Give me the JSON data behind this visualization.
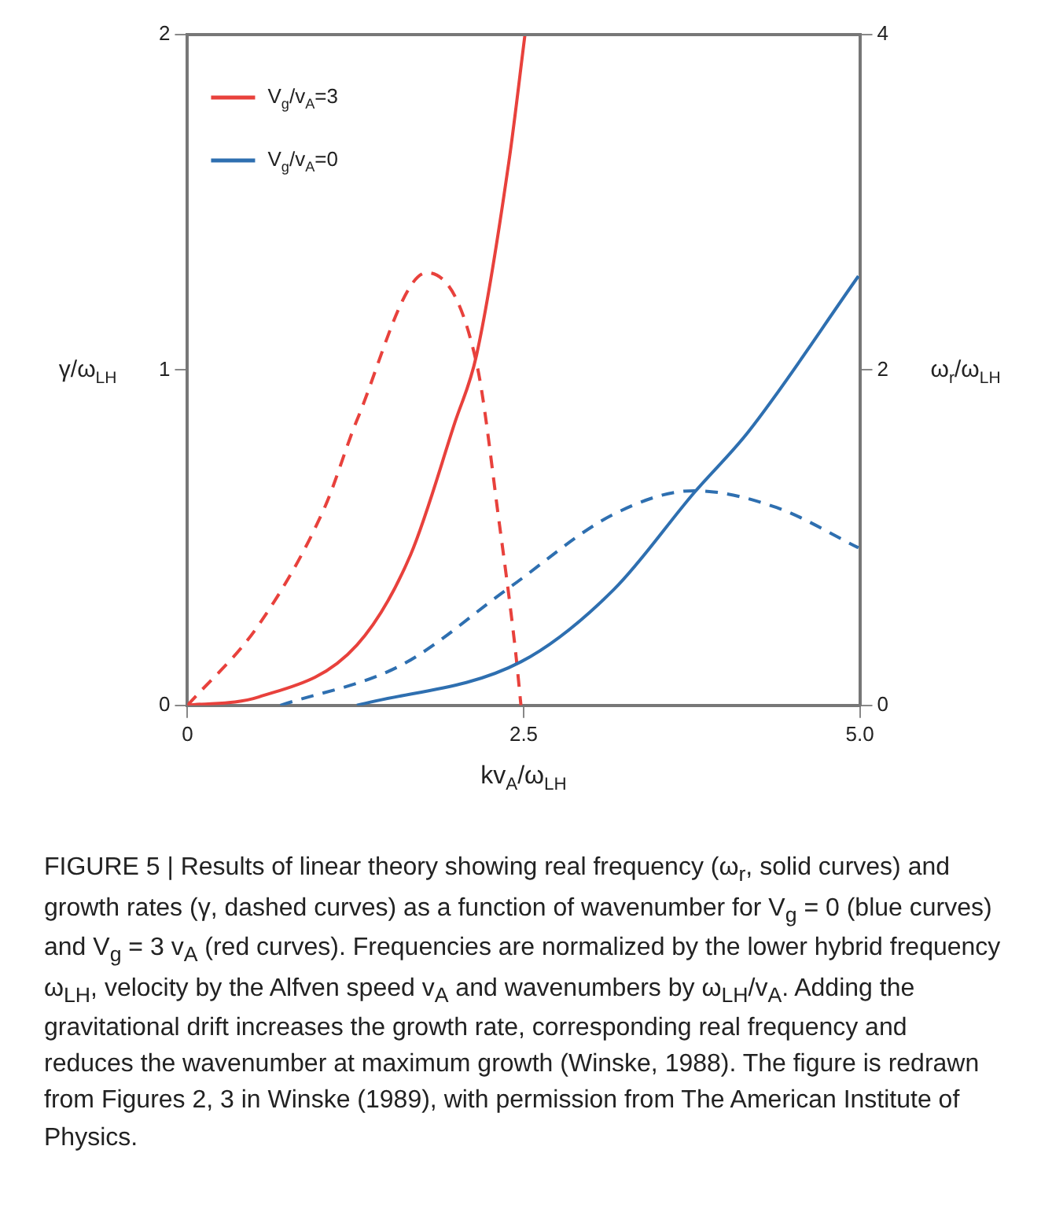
{
  "chart_data": {
    "type": "line",
    "xlabel": "kv$_{A}$/ω$_{LH}$",
    "ylabel": "γ/ω$_{LH}$",
    "y2label": "ω$_{r}$/ω$_{LH}$",
    "xlim": [
      0,
      5
    ],
    "xticks": [
      0,
      2.5,
      {
        "value": 5,
        "label": "5.0"
      }
    ],
    "ylim": [
      0,
      2
    ],
    "yticks": [
      0,
      1,
      2
    ],
    "y2lim": [
      0,
      4
    ],
    "y2ticks": [
      0,
      2,
      4
    ],
    "grid": false,
    "legend": "top left",
    "marker": "none",
    "series": [
      {
        "name": "V$_{g}$/v$_{A}$=3",
        "color": "#e8413c",
        "axis": "y2",
        "line_style": "solid",
        "x": [
          0,
          0.53,
          1.26,
          1.66,
          1.99,
          2.15,
          2.39,
          2.51
        ],
        "values": [
          0,
          0.05,
          0.36,
          0.9,
          1.69,
          2.09,
          3.24,
          4.0
        ]
      },
      {
        "name": "V$_{g}$/v$_{A}$=0",
        "color": "#2e6fb0",
        "axis": "y2",
        "line_style": "solid",
        "x": [
          1.26,
          2.48,
          3.17,
          3.77,
          4.17,
          4.99
        ],
        "values": [
          0,
          0.26,
          0.69,
          1.27,
          1.63,
          2.56
        ]
      },
      {
        "color": "#e8413c",
        "axis": "y",
        "line_style": "dashed",
        "x": [
          0,
          0.53,
          1.02,
          1.26,
          1.78,
          2.15,
          2.32,
          2.44,
          2.48
        ],
        "values": [
          0,
          0.24,
          0.59,
          0.85,
          1.29,
          1.02,
          0.54,
          0.16,
          0
        ]
      },
      {
        "color": "#2e6fb0",
        "axis": "y",
        "line_style": "dashed",
        "x": [
          0.69,
          1.59,
          2.39,
          3.17,
          3.77,
          4.38,
          4.99
        ],
        "values": [
          0,
          0.12,
          0.35,
          0.57,
          0.64,
          0.59,
          0.47
        ]
      }
    ],
    "annotations": [
      "FIGURE 5 | Results of linear theory showing real frequency (ω$_{r}$, solid curves) and growth rates (γ, dashed curves) as a function of wavenumber for V$_{g}$ = 0 (blue curves) and V$_{g}$ = 3 v$_{A}$ (red curves). Frequencies are normalized by the lower hybrid frequency ω$_{LH}$, velocity by the Alfven speed v$_{A}$ and wavenumbers by ω$_{LH}$/v$_{A}$. Adding the gravitational drift increases the growth rate, corresponding real frequency and reduces the wavenumber at maximum growth (Winske, 1988). The figure is redrawn from Figures 2, 3 in Winske (1989), with permission from The American Institute of Physics."
    ]
  }
}
